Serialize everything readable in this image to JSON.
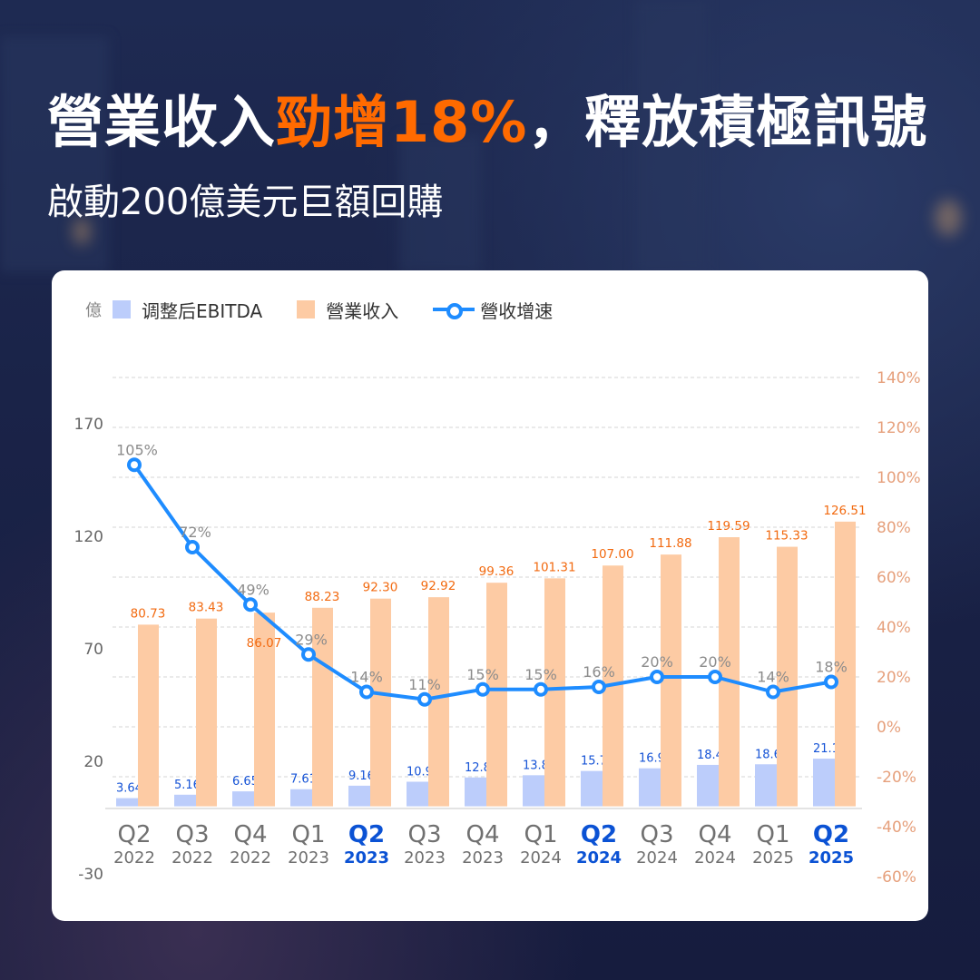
{
  "header": {
    "title_prefix": "營業收入",
    "title_highlight": "勁增18%",
    "title_suffix": "，釋放積極訊號",
    "subtitle": "啟動200億美元巨額回購"
  },
  "legend": {
    "unit": "億",
    "items": [
      {
        "label": "调整后EBITDA",
        "color": "#bccdfb",
        "type": "bar"
      },
      {
        "label": "營業收入",
        "color": "#fdcba4",
        "type": "bar"
      },
      {
        "label": "營收增速",
        "color": "#1e8cff",
        "type": "line"
      }
    ]
  },
  "colors": {
    "ebitda_bar": "#bccdfb",
    "revenue_bar": "#fdcba4",
    "growth_line": "#1e8cff",
    "revenue_label": "#f26a10",
    "ebitda_label": "#1553d6",
    "highlight_axis_label": "#0b52d4",
    "right_axis": "#e6a07c",
    "left_axis": "#666666",
    "growth_label": "#8c8c8c",
    "accent": "#ff6a00"
  },
  "chart_data": {
    "type": "bar+line",
    "title": "營業收入勁增18%，釋放積極訊號",
    "subtitle": "啟動200億美元巨額回購",
    "categories": [
      "Q2 2022",
      "Q3 2022",
      "Q4 2022",
      "Q1 2023",
      "Q2 2023",
      "Q3 2023",
      "Q4 2023",
      "Q1 2024",
      "Q2 2024",
      "Q3 2024",
      "Q4 2024",
      "Q1 2025",
      "Q2 2025"
    ],
    "x_quarter": [
      "Q2",
      "Q3",
      "Q4",
      "Q1",
      "Q2",
      "Q3",
      "Q4",
      "Q1",
      "Q2",
      "Q3",
      "Q4",
      "Q1",
      "Q2"
    ],
    "x_year": [
      "2022",
      "2022",
      "2022",
      "2023",
      "2023",
      "2023",
      "2023",
      "2024",
      "2024",
      "2024",
      "2024",
      "2025",
      "2025"
    ],
    "x_highlight": [
      false,
      false,
      false,
      false,
      true,
      false,
      false,
      false,
      true,
      false,
      false,
      false,
      true
    ],
    "series": [
      {
        "name": "调整后EBITDA",
        "type": "bar",
        "axis": "left",
        "values": [
          3.64,
          5.16,
          6.65,
          7.61,
          9.16,
          10.92,
          12.83,
          13.82,
          15.7,
          16.9,
          18.42,
          18.68,
          21.19
        ],
        "labels": [
          "3.64",
          "5.16",
          "6.65",
          "7.61",
          "9.16",
          "10.92",
          "12.83",
          "13.82",
          "15.7",
          "16.9",
          "18.42",
          "18.68",
          "21.19"
        ]
      },
      {
        "name": "營業收入",
        "type": "bar",
        "axis": "left",
        "values": [
          80.73,
          83.43,
          86.07,
          88.23,
          92.3,
          92.92,
          99.36,
          101.31,
          107.0,
          111.88,
          119.59,
          115.33,
          126.51
        ],
        "labels": [
          "80.73",
          "83.43",
          "86.07",
          "88.23",
          "92.30",
          "92.92",
          "99.36",
          "101.31",
          "107.00",
          "111.88",
          "119.59",
          "115.33",
          "126.51"
        ]
      },
      {
        "name": "營收增速",
        "type": "line",
        "axis": "right",
        "values": [
          105,
          72,
          49,
          29,
          14,
          11,
          15,
          15,
          16,
          20,
          20,
          14,
          18
        ],
        "labels": [
          "105%",
          "72%",
          "49%",
          "29%",
          "14%",
          "11%",
          "15%",
          "15%",
          "16%",
          "20%",
          "20%",
          "14%",
          "18%"
        ]
      }
    ],
    "left_axis": {
      "label": "億",
      "ticks": [
        "170",
        "120",
        "70",
        "20",
        "-30"
      ],
      "ylim": [
        -30,
        170
      ]
    },
    "right_axis": {
      "ticks": [
        "140%",
        "120%",
        "100%",
        "80%",
        "60%",
        "40%",
        "20%",
        "0%",
        "-20%",
        "-40%",
        "-60%"
      ],
      "ylim": [
        -60,
        140
      ]
    },
    "grid": "dashed horizontal",
    "legend_position": "top-left"
  }
}
